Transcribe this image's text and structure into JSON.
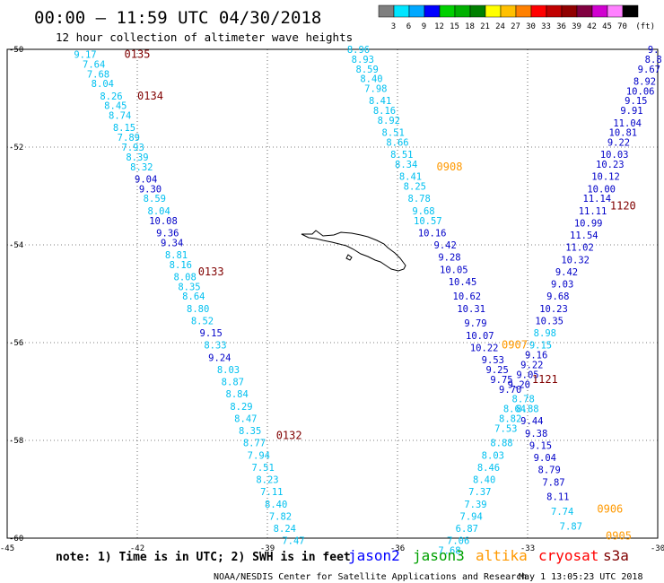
{
  "title": "00:00 — 11:59 UTC 04/30/2018",
  "subtitle": "12 hour collection of altimeter wave heights",
  "legend": {
    "unit": "(ft)",
    "items": [
      {
        "label": "3",
        "color": "#7f7f7f"
      },
      {
        "label": "6",
        "color": "#00e5ff"
      },
      {
        "label": "9",
        "color": "#00a8ff"
      },
      {
        "label": "12",
        "color": "#0000ff"
      },
      {
        "label": "15",
        "color": "#00d000"
      },
      {
        "label": "18",
        "color": "#00b000"
      },
      {
        "label": "21",
        "color": "#008000"
      },
      {
        "label": "24",
        "color": "#ffff00"
      },
      {
        "label": "27",
        "color": "#ffc000"
      },
      {
        "label": "30",
        "color": "#ff8000"
      },
      {
        "label": "33",
        "color": "#ff0000"
      },
      {
        "label": "36",
        "color": "#c00000"
      },
      {
        "label": "39",
        "color": "#900000"
      },
      {
        "label": "42",
        "color": "#800040"
      },
      {
        "label": "45",
        "color": "#d000d0"
      },
      {
        "label": "70",
        "color": "#ff80ff"
      },
      {
        "label": "",
        "color": "#000000"
      }
    ]
  },
  "axes": {
    "x_ticks": [
      "-45",
      "-42",
      "-39",
      "-36",
      "-33",
      "-30"
    ],
    "y_ticks": [
      "-50",
      "-52",
      "-54",
      "-56",
      "-58",
      "-60"
    ]
  },
  "colors": {
    "light": "#00c0f0",
    "dark": "#0000c8",
    "altika": "#ff9900",
    "cryosat": "#800000"
  },
  "chart_data": {
    "type": "scatter",
    "title": "00:00 — 11:59 UTC 04/30/2018",
    "subtitle": "12 hour collection of altimeter wave heights",
    "xlim": [
      -45,
      -30
    ],
    "ylim": [
      -60,
      -50
    ],
    "xticks": [
      -45,
      -42,
      -39,
      -36,
      -33,
      -30
    ],
    "yticks": [
      -50,
      -52,
      -54,
      -56,
      -58,
      -60
    ],
    "grid": true,
    "passes": [
      {
        "name": "0135",
        "label_at": [
          -42.0,
          -50.1
        ],
        "label_color": "#800000"
      },
      {
        "name": "0134",
        "label_at": [
          -41.7,
          -50.95
        ],
        "label_color": "#800000"
      },
      {
        "name": "0133",
        "label_at": [
          -40.3,
          -54.55
        ],
        "label_color": "#800000"
      },
      {
        "name": "0132",
        "label_at": [
          -38.5,
          -57.9
        ],
        "label_color": "#800000"
      },
      {
        "name": "0908",
        "label_at": [
          -34.8,
          -52.4
        ],
        "label_color": "#ff9900"
      },
      {
        "name": "0907",
        "label_at": [
          -33.3,
          -56.05
        ],
        "label_color": "#ff9900"
      },
      {
        "name": "1121",
        "label_at": [
          -32.6,
          -56.75
        ],
        "label_color": "#800000"
      },
      {
        "name": "1120",
        "label_at": [
          -30.8,
          -53.2
        ],
        "label_color": "#800000"
      },
      {
        "name": "0906",
        "label_at": [
          -31.1,
          -59.4
        ],
        "label_color": "#ff9900"
      },
      {
        "name": "0905",
        "label_at": [
          -30.9,
          -59.95
        ],
        "label_color": "#ff9900"
      }
    ],
    "tracks": [
      {
        "points": [
          [
            -43.2,
            -50.1,
            "9.17",
            "light"
          ],
          [
            -43.0,
            -50.3,
            "7.64",
            "light"
          ],
          [
            -42.9,
            -50.5,
            "7.68",
            "light"
          ],
          [
            -42.8,
            -50.7,
            "8.04",
            "light"
          ],
          [
            -42.6,
            -50.95,
            "8.26",
            "light"
          ],
          [
            -42.5,
            -51.15,
            "8.45",
            "light"
          ],
          [
            -42.4,
            -51.35,
            "8.74",
            "light"
          ],
          [
            -42.3,
            -51.6,
            "8.15",
            "light"
          ],
          [
            -42.2,
            -51.8,
            "7.89",
            "light"
          ],
          [
            -42.1,
            -52.0,
            "7.93",
            "light"
          ],
          [
            -42.0,
            -52.2,
            "8.39",
            "light"
          ],
          [
            -41.9,
            -52.4,
            "8.32",
            "light"
          ],
          [
            -41.8,
            -52.65,
            "9.04",
            "dark"
          ],
          [
            -41.7,
            -52.85,
            "9.30",
            "dark"
          ],
          [
            -41.6,
            -53.05,
            "8.59",
            "light"
          ],
          [
            -41.5,
            -53.3,
            "8.04",
            "light"
          ],
          [
            -41.4,
            -53.5,
            "10.08",
            "dark"
          ],
          [
            -41.3,
            -53.75,
            "9.36",
            "dark"
          ],
          [
            -41.2,
            -53.95,
            "9.34",
            "dark"
          ],
          [
            -41.1,
            -54.2,
            "8.81",
            "light"
          ],
          [
            -41.0,
            -54.4,
            "8.16",
            "light"
          ],
          [
            -40.9,
            -54.65,
            "8.08",
            "light"
          ],
          [
            -40.8,
            -54.85,
            "8.35",
            "light"
          ],
          [
            -40.7,
            -55.05,
            "8.64",
            "light"
          ],
          [
            -40.6,
            -55.3,
            "8.80",
            "light"
          ],
          [
            -40.5,
            -55.55,
            "8.52",
            "light"
          ],
          [
            -40.3,
            -55.8,
            "9.15",
            "dark"
          ],
          [
            -40.2,
            -56.05,
            "8.33",
            "light"
          ],
          [
            -40.1,
            -56.3,
            "9.24",
            "dark"
          ],
          [
            -39.9,
            -56.55,
            "8.03",
            "light"
          ],
          [
            -39.8,
            -56.8,
            "8.87",
            "light"
          ],
          [
            -39.7,
            -57.05,
            "8.84",
            "light"
          ],
          [
            -39.6,
            -57.3,
            "8.29",
            "light"
          ],
          [
            -39.5,
            -57.55,
            "8.47",
            "light"
          ],
          [
            -39.4,
            -57.8,
            "8.35",
            "light"
          ],
          [
            -39.3,
            -58.05,
            "8.77",
            "light"
          ],
          [
            -39.2,
            -58.3,
            "7.94",
            "light"
          ],
          [
            -39.1,
            -58.55,
            "7.51",
            "light"
          ],
          [
            -39.0,
            -58.8,
            "8.23",
            "light"
          ],
          [
            -38.9,
            -59.05,
            "7.11",
            "light"
          ],
          [
            -38.8,
            -59.3,
            "8.40",
            "light"
          ],
          [
            -38.7,
            -59.55,
            "7.82",
            "light"
          ],
          [
            -38.6,
            -59.8,
            "8.24",
            "light"
          ],
          [
            -38.4,
            -60.05,
            "7.47",
            "light"
          ]
        ]
      },
      {
        "points": [
          [
            -36.9,
            -50.0,
            "8.96",
            "light"
          ],
          [
            -36.8,
            -50.2,
            "8.93",
            "light"
          ],
          [
            -36.7,
            -50.4,
            "8.59",
            "light"
          ],
          [
            -36.6,
            -50.6,
            "8.40",
            "light"
          ],
          [
            -36.5,
            -50.8,
            "7.98",
            "light"
          ],
          [
            -36.4,
            -51.05,
            "8.41",
            "light"
          ],
          [
            -36.3,
            -51.25,
            "8.16",
            "light"
          ],
          [
            -36.2,
            -51.45,
            "8.92",
            "light"
          ],
          [
            -36.1,
            -51.7,
            "8.51",
            "light"
          ],
          [
            -36.0,
            -51.9,
            "8.66",
            "light"
          ],
          [
            -35.9,
            -52.15,
            "8.51",
            "light"
          ],
          [
            -35.8,
            -52.35,
            "8.34",
            "light"
          ],
          [
            -35.7,
            -52.6,
            "8.41",
            "light"
          ],
          [
            -35.6,
            -52.8,
            "8.25",
            "light"
          ],
          [
            -35.5,
            -53.05,
            "8.78",
            "light"
          ],
          [
            -35.4,
            -53.3,
            "9.68",
            "light"
          ],
          [
            -35.3,
            -53.5,
            "10.57",
            "light"
          ],
          [
            -35.2,
            -53.75,
            "10.16",
            "dark"
          ],
          [
            -34.9,
            -54.0,
            "9.42",
            "dark"
          ],
          [
            -34.8,
            -54.25,
            "9.28",
            "dark"
          ],
          [
            -34.7,
            -54.5,
            "10.05",
            "dark"
          ],
          [
            -34.5,
            -54.75,
            "10.45",
            "dark"
          ],
          [
            -34.4,
            -55.05,
            "10.62",
            "dark"
          ],
          [
            -34.3,
            -55.3,
            "10.31",
            "dark"
          ],
          [
            -34.2,
            -55.6,
            "9.79",
            "dark"
          ],
          [
            -34.1,
            -55.85,
            "10.07",
            "dark"
          ],
          [
            -34.0,
            -56.1,
            "10.22",
            "dark"
          ],
          [
            -33.8,
            -56.35,
            "9.53",
            "dark"
          ],
          [
            -33.7,
            -56.55,
            "9.25",
            "dark"
          ],
          [
            -33.6,
            -56.75,
            "9.75",
            "dark"
          ],
          [
            -33.4,
            -56.95,
            "9.70",
            "dark"
          ],
          [
            -33.1,
            -57.15,
            "8.78",
            "light"
          ],
          [
            -33.0,
            -57.35,
            "8.88",
            "light"
          ],
          [
            -32.9,
            -57.6,
            "9.44",
            "dark"
          ],
          [
            -32.8,
            -57.85,
            "9.38",
            "dark"
          ],
          [
            -32.7,
            -58.1,
            "9.15",
            "dark"
          ],
          [
            -32.6,
            -58.35,
            "9.04",
            "dark"
          ],
          [
            -32.5,
            -58.6,
            "8.79",
            "dark"
          ],
          [
            -32.4,
            -58.85,
            "7.87",
            "dark"
          ],
          [
            -32.3,
            -59.15,
            "8.11",
            "dark"
          ],
          [
            -32.2,
            -59.45,
            "7.74",
            "light"
          ],
          [
            -32.0,
            -59.75,
            "7.87",
            "light"
          ]
        ]
      },
      {
        "points": [
          [
            -30.1,
            -50.0,
            "9.",
            "dark"
          ],
          [
            -30.1,
            -50.2,
            "8.8",
            "dark"
          ],
          [
            -30.2,
            -50.4,
            "9.67",
            "dark"
          ],
          [
            -30.3,
            -50.65,
            "8.92",
            "dark"
          ],
          [
            -30.4,
            -50.85,
            "10.06",
            "dark"
          ],
          [
            -30.5,
            -51.05,
            "9.15",
            "dark"
          ],
          [
            -30.6,
            -51.25,
            "9.91",
            "dark"
          ],
          [
            -30.7,
            -51.5,
            "11.04",
            "dark"
          ],
          [
            -30.8,
            -51.7,
            "10.81",
            "dark"
          ],
          [
            -30.9,
            -51.9,
            "9.22",
            "dark"
          ],
          [
            -31.0,
            -52.15,
            "10.03",
            "dark"
          ],
          [
            -31.1,
            -52.35,
            "10.23",
            "dark"
          ],
          [
            -31.2,
            -52.6,
            "10.12",
            "dark"
          ],
          [
            -31.3,
            -52.85,
            "10.00",
            "dark"
          ],
          [
            -31.4,
            -53.05,
            "11.14",
            "dark"
          ],
          [
            -31.5,
            -53.3,
            "11.11",
            "dark"
          ],
          [
            -31.6,
            -53.55,
            "10.99",
            "dark"
          ],
          [
            -31.7,
            -53.8,
            "11.54",
            "dark"
          ],
          [
            -31.8,
            -54.05,
            "11.02",
            "dark"
          ],
          [
            -31.9,
            -54.3,
            "10.32",
            "dark"
          ],
          [
            -32.1,
            -54.55,
            "9.42",
            "dark"
          ],
          [
            -32.2,
            -54.8,
            "9.03",
            "dark"
          ],
          [
            -32.3,
            -55.05,
            "9.68",
            "dark"
          ],
          [
            -32.4,
            -55.3,
            "10.23",
            "dark"
          ],
          [
            -32.5,
            -55.55,
            "10.35",
            "dark"
          ],
          [
            -32.6,
            -55.8,
            "8.98",
            "light"
          ],
          [
            -32.7,
            -56.05,
            "9.15",
            "light"
          ],
          [
            -32.8,
            -56.25,
            "9.16",
            "dark"
          ],
          [
            -32.9,
            -56.45,
            "9.22",
            "dark"
          ],
          [
            -33.0,
            -56.65,
            "9.05",
            "dark"
          ],
          [
            -33.2,
            -56.85,
            "9.20",
            "dark"
          ]
        ]
      },
      {
        "points": [
          [
            -33.3,
            -57.35,
            "8.64",
            "light"
          ],
          [
            -33.4,
            -57.55,
            "8.82",
            "light"
          ],
          [
            -33.5,
            -57.75,
            "7.53",
            "light"
          ],
          [
            -33.6,
            -58.05,
            "8.88",
            "light"
          ],
          [
            -33.8,
            -58.3,
            "8.03",
            "light"
          ],
          [
            -33.9,
            -58.55,
            "8.46",
            "light"
          ],
          [
            -34.0,
            -58.8,
            "8.40",
            "light"
          ],
          [
            -34.1,
            -59.05,
            "7.37",
            "light"
          ],
          [
            -34.2,
            -59.3,
            "7.39",
            "light"
          ],
          [
            -34.3,
            -59.55,
            "7.94",
            "light"
          ],
          [
            -34.4,
            -59.8,
            "6.87",
            "light"
          ],
          [
            -34.6,
            -60.05,
            "7.06",
            "light"
          ],
          [
            -34.8,
            -60.25,
            "7.68",
            "light"
          ]
        ]
      }
    ]
  },
  "footer": {
    "note": "note: 1) Time is in UTC; 2) SWH is in feet",
    "satellites": [
      {
        "name": "jason2",
        "color": "#0000ff"
      },
      {
        "name": "jason3",
        "color": "#00a000"
      },
      {
        "name": "altika",
        "color": "#ff9900"
      },
      {
        "name": "cryosat",
        "color": "#ff0000"
      },
      {
        "name": "s3a",
        "color": "#800000"
      }
    ],
    "credit": "NOAA/NESDIS Center for Satellite Applications and Research",
    "generated": "May  1 13:05:23 UTC 2018"
  }
}
